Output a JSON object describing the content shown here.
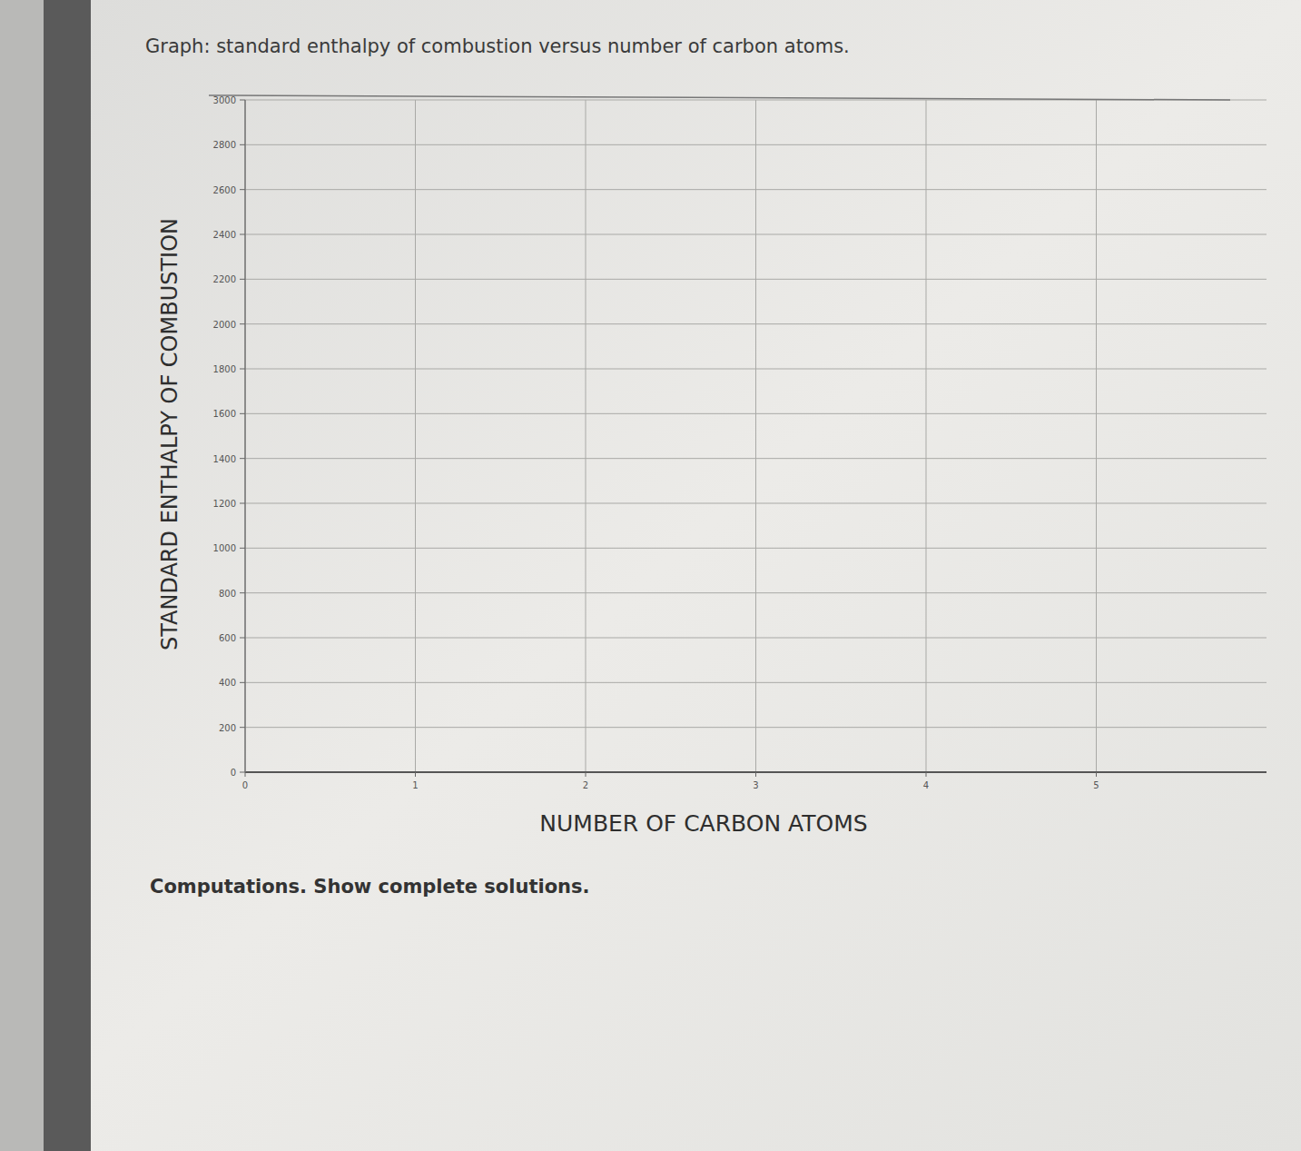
{
  "chart_data": {
    "type": "line",
    "title": "Graph: standard enthalpy of combustion versus number of carbon atoms.",
    "x_label": "NUMBER OF CARBON ATOMS",
    "y_label": "STANDARD ENTHALPY OF COMBUSTION",
    "annotations": [
      "Computations. Show complete solutions."
    ],
    "series": [],
    "xlim": [
      0,
      6
    ],
    "xticks": [
      0,
      1,
      2,
      3,
      4,
      5
    ],
    "ylim": [
      0,
      3000
    ],
    "yticks": [
      0,
      200,
      400,
      600,
      800,
      1000,
      1200,
      1400,
      1600,
      1800,
      2000,
      2200,
      2400,
      2600,
      2800,
      3000
    ],
    "grid": true
  }
}
